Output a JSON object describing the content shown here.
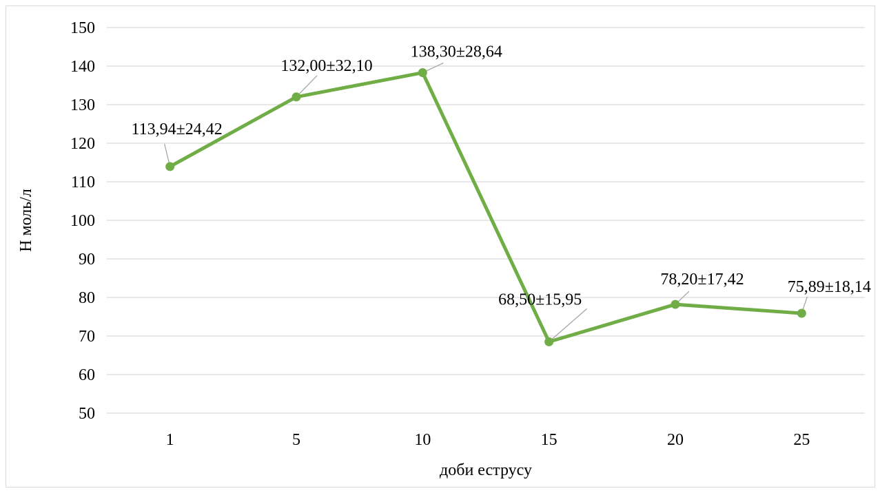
{
  "chart_data": {
    "type": "line",
    "categories": [
      "1",
      "5",
      "10",
      "15",
      "20",
      "25"
    ],
    "values": [
      113.94,
      132.0,
      138.3,
      68.5,
      78.2,
      75.89
    ],
    "data_labels": [
      "113,94±24,42",
      "132,00±32,10",
      "138,30±28,64",
      "68,50±15,95",
      "78,20±17,42",
      "75,89±18,14"
    ],
    "xlabel": "доби еструсу",
    "ylabel": "Н моль/л",
    "ylim": [
      50,
      150
    ],
    "yticks": [
      50,
      60,
      70,
      80,
      90,
      100,
      110,
      120,
      130,
      140,
      150
    ],
    "grid": true,
    "legend": "none",
    "line_color": "#70ad47"
  }
}
